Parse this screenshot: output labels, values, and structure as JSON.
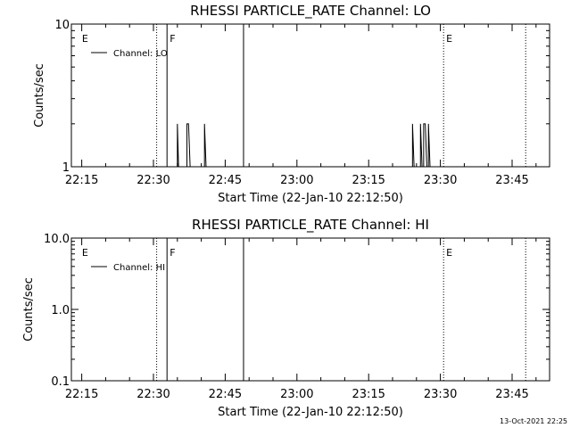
{
  "footer": "13-Oct-2021 22:25",
  "chart_data": [
    {
      "type": "line",
      "title": "RHESSI PARTICLE_RATE Channel: LO",
      "xlabel": "Start Time (22-Jan-10 22:12:50)",
      "ylabel": "Counts/sec",
      "yscale": "log",
      "ylim": [
        1,
        10
      ],
      "yticks": [
        1,
        10
      ],
      "ytick_labels": [
        "1",
        "10"
      ],
      "xlim": [
        "22:12:50",
        "23:52:50"
      ],
      "xticks": [
        "22:15",
        "22:30",
        "22:45",
        "23:00",
        "23:15",
        "23:30",
        "23:45"
      ],
      "legend": {
        "position": "top-left",
        "entries": [
          "Channel: LO"
        ]
      },
      "series": [
        {
          "name": "Channel: LO",
          "color": "#000000",
          "points": [
            [
              "22:35:00",
              1
            ],
            [
              "22:35:00",
              2
            ],
            [
              "22:35:15",
              1
            ],
            [
              "22:37:00",
              1
            ],
            [
              "22:37:00",
              2
            ],
            [
              "22:37:20",
              2
            ],
            [
              "22:37:40",
              1
            ],
            [
              "22:40:40",
              1
            ],
            [
              "22:40:40",
              2
            ],
            [
              "22:41:00",
              1
            ],
            [
              "23:24:10",
              1
            ],
            [
              "23:24:10",
              2
            ],
            [
              "23:24:30",
              1
            ],
            [
              "23:25:50",
              1
            ],
            [
              "23:25:50",
              2
            ],
            [
              "23:26:10",
              1
            ],
            [
              "23:26:30",
              1
            ],
            [
              "23:26:30",
              2
            ],
            [
              "23:26:50",
              2
            ],
            [
              "23:27:10",
              1
            ],
            [
              "23:27:30",
              1
            ],
            [
              "23:27:30",
              2
            ],
            [
              "23:27:50",
              1
            ]
          ]
        }
      ],
      "markers": [
        {
          "time": "22:14:30",
          "style": "none",
          "label": "E"
        },
        {
          "time": "22:30:40",
          "style": "dotted",
          "label": ""
        },
        {
          "time": "22:32:50",
          "style": "solid",
          "label": "F"
        },
        {
          "time": "22:48:50",
          "style": "solid",
          "label": ""
        },
        {
          "time": "23:30:40",
          "style": "dotted",
          "label": "E"
        },
        {
          "time": "23:47:50",
          "style": "dotted",
          "label": ""
        }
      ]
    },
    {
      "type": "line",
      "title": "RHESSI PARTICLE_RATE Channel: HI",
      "xlabel": "Start Time (22-Jan-10 22:12:50)",
      "ylabel": "Counts/sec",
      "yscale": "log",
      "ylim": [
        0.1,
        10
      ],
      "yticks": [
        0.1,
        1,
        10
      ],
      "ytick_labels": [
        "0.1",
        "1.0",
        "10.0"
      ],
      "xlim": [
        "22:12:50",
        "23:52:50"
      ],
      "xticks": [
        "22:15",
        "22:30",
        "22:45",
        "23:00",
        "23:15",
        "23:30",
        "23:45"
      ],
      "legend": {
        "position": "top-left",
        "entries": [
          "Channel: HI"
        ]
      },
      "series": [
        {
          "name": "Channel: HI",
          "color": "#000000",
          "points": []
        }
      ],
      "markers": [
        {
          "time": "22:14:30",
          "style": "none",
          "label": "E"
        },
        {
          "time": "22:30:40",
          "style": "dotted",
          "label": ""
        },
        {
          "time": "22:32:50",
          "style": "solid",
          "label": "F"
        },
        {
          "time": "22:48:50",
          "style": "solid",
          "label": ""
        },
        {
          "time": "23:30:40",
          "style": "dotted",
          "label": "E"
        },
        {
          "time": "23:47:50",
          "style": "dotted",
          "label": ""
        }
      ]
    }
  ]
}
